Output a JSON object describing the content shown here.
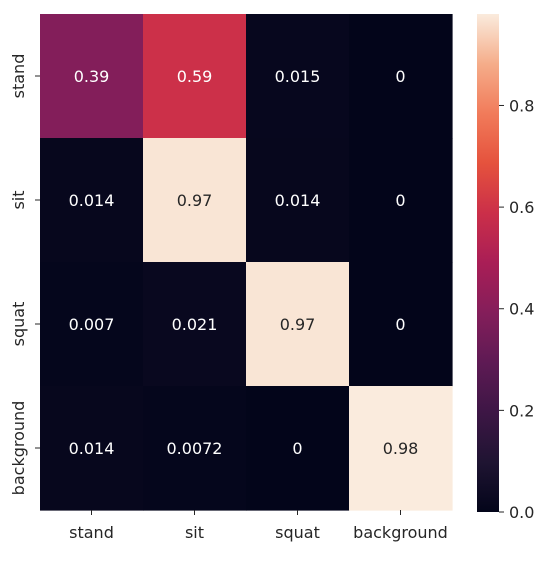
{
  "chart_data": {
    "type": "heatmap",
    "title": "",
    "xlabel": "",
    "ylabel": "",
    "x_categories": [
      "stand",
      "sit",
      "squat",
      "background"
    ],
    "y_categories": [
      "stand",
      "sit",
      "squat",
      "background"
    ],
    "values": [
      [
        0.39,
        0.59,
        0.015,
        0
      ],
      [
        0.014,
        0.97,
        0.014,
        0
      ],
      [
        0.007,
        0.021,
        0.97,
        0
      ],
      [
        0.014,
        0.0072,
        0,
        0.98
      ]
    ],
    "value_labels": [
      [
        "0.39",
        "0.59",
        "0.015",
        "0"
      ],
      [
        "0.014",
        "0.97",
        "0.014",
        "0"
      ],
      [
        "0.007",
        "0.021",
        "0.97",
        "0"
      ],
      [
        "0.014",
        "0.0072",
        "0",
        "0.98"
      ]
    ],
    "colormap": "rocket",
    "colorbar": {
      "range": [
        0,
        0.98
      ],
      "ticks": [
        0.0,
        0.2,
        0.4,
        0.6,
        0.8
      ],
      "tick_labels": [
        "0.0",
        "0.2",
        "0.4",
        "0.6",
        "0.8"
      ]
    },
    "grid": false,
    "legend": "colorbar-right"
  }
}
